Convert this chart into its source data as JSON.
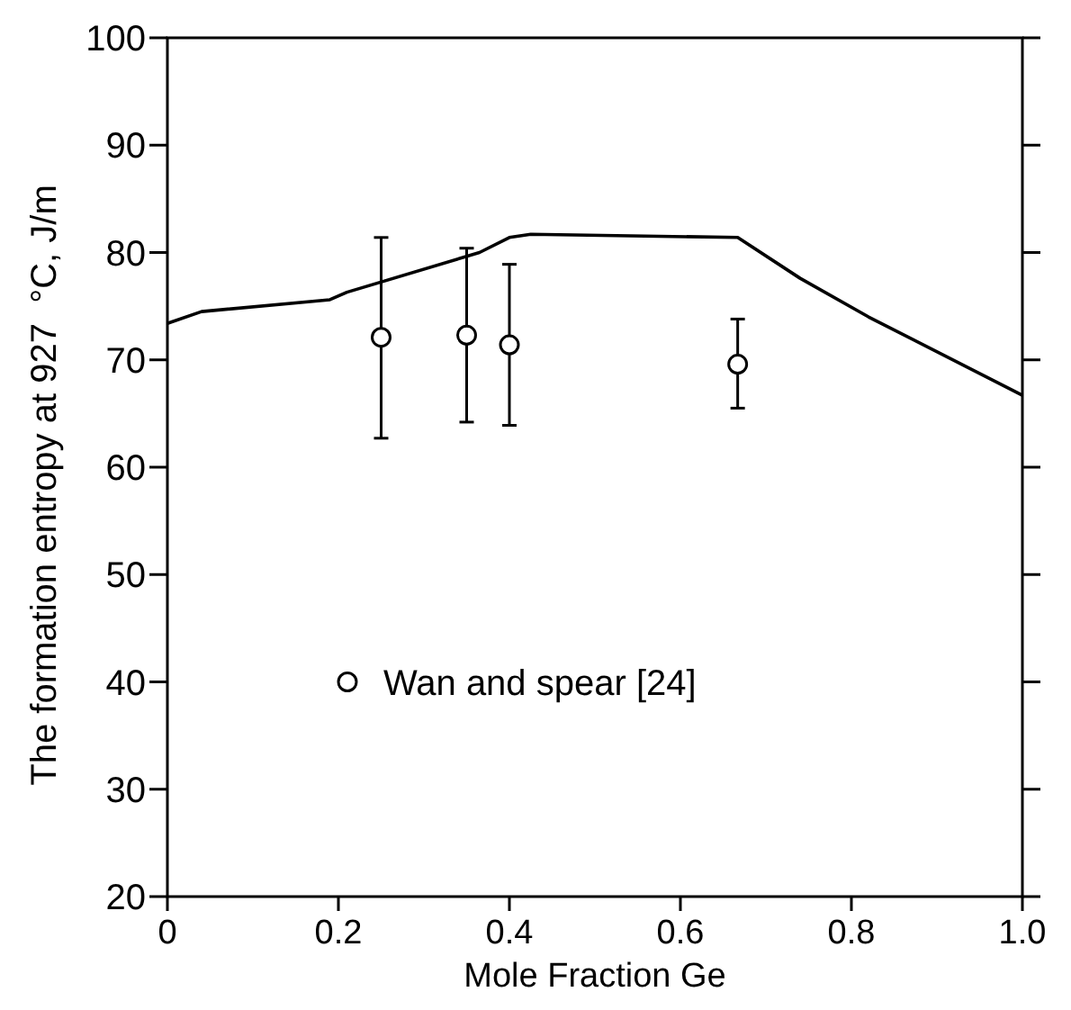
{
  "chart_data": {
    "type": "line",
    "xlabel": "Mole Fraction Ge",
    "ylabel": "The formation entropy at 927  °C, J/m",
    "xlim": [
      0,
      1
    ],
    "xticks": [
      {
        "value": 0,
        "label": "0"
      },
      0.2,
      0.4,
      0.6,
      0.8,
      {
        "value": 1,
        "label": "1.0"
      }
    ],
    "ylim": [
      20,
      100
    ],
    "yticks": [
      20,
      30,
      40,
      50,
      60,
      70,
      80,
      90,
      100
    ],
    "grid": false,
    "legend": "left",
    "series": [
      {
        "color": "#000000",
        "marker": "none",
        "x": [
          0,
          0.04,
          0.19,
          0.21,
          0.365,
          0.4,
          0.425,
          0.667,
          0.74,
          0.82,
          1
        ],
        "values": [
          73.4,
          74.5,
          75.6,
          76.3,
          80.0,
          81.4,
          81.7,
          81.4,
          77.6,
          74.0,
          66.7
        ]
      },
      {
        "type": "scatter",
        "name": "Wan and spear [24]",
        "color": "#000000",
        "marker": "circle",
        "x": [
          0.25,
          0.35,
          0.4,
          0.667
        ],
        "values": [
          72.1,
          72.3,
          71.4,
          69.6
        ],
        "errors": [
          [
            62.7,
            81.4
          ],
          [
            64.2,
            80.4
          ],
          [
            63.9,
            78.9
          ],
          [
            65.5,
            73.8
          ]
        ]
      }
    ]
  }
}
